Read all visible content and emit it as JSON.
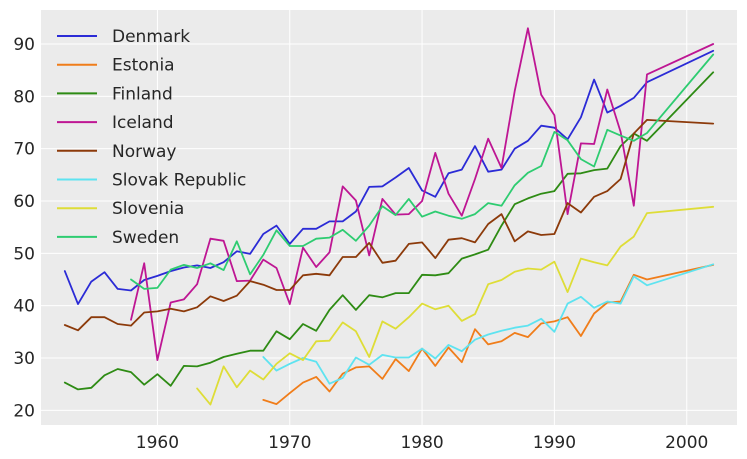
{
  "chart_data": {
    "type": "line",
    "title": "",
    "xlabel": "",
    "ylabel": "",
    "xlim": [
      1951.2,
      2003.8
    ],
    "ylim": [
      17.2,
      96.5
    ],
    "xticks": [
      1960,
      1970,
      1980,
      1990,
      2000
    ],
    "yticks": [
      20,
      30,
      40,
      50,
      60,
      70,
      80,
      90
    ],
    "grid": true,
    "legend_position": "top-left",
    "colors": {
      "background": "#ebebeb",
      "grid": "#ffffff",
      "text": "#262626"
    },
    "series": [
      {
        "name": "Denmark",
        "color": "#2b2bd6",
        "x": [
          1953,
          1954,
          1955,
          1956,
          1957,
          1958,
          1959,
          1960,
          1961,
          1962,
          1963,
          1964,
          1965,
          1966,
          1967,
          1968,
          1969,
          1970,
          1971,
          1972,
          1973,
          1974,
          1975,
          1976,
          1977,
          1978,
          1979,
          1980,
          1981,
          1982,
          1983,
          1984,
          1985,
          1986,
          1987,
          1988,
          1989,
          1990,
          1991,
          1992,
          1993,
          1994,
          1995,
          1996,
          1997,
          2002
        ],
        "y": [
          46.6,
          40.3,
          44.6,
          46.4,
          43.2,
          42.9,
          44.9,
          45.7,
          46.6,
          47.3,
          47.7,
          47.2,
          48.3,
          50.4,
          49.9,
          53.7,
          55.3,
          51.8,
          54.7,
          54.7,
          56.1,
          56.1,
          58.0,
          62.7,
          62.8,
          64.5,
          66.3,
          62.0,
          60.8,
          65.3,
          66.0,
          70.5,
          65.6,
          66.0,
          70.0,
          71.5,
          74.4,
          74.0,
          71.8,
          76.0,
          83.2,
          76.9,
          78.2,
          79.7,
          82.7,
          88.7
        ]
      },
      {
        "name": "Estonia",
        "color": "#f07d1a",
        "x": [
          1968,
          1969,
          1970,
          1971,
          1972,
          1973,
          1974,
          1975,
          1976,
          1977,
          1978,
          1979,
          1980,
          1981,
          1982,
          1983,
          1984,
          1985,
          1986,
          1987,
          1988,
          1989,
          1990,
          1991,
          1992,
          1993,
          1994,
          1995,
          1996,
          1997,
          2002
        ],
        "y": [
          22.0,
          21.2,
          23.3,
          25.3,
          26.4,
          23.6,
          27.0,
          28.2,
          28.4,
          26.0,
          29.8,
          27.5,
          31.8,
          28.5,
          32.0,
          29.2,
          35.5,
          32.6,
          33.2,
          34.8,
          34.0,
          36.6,
          37.0,
          37.8,
          34.2,
          38.5,
          40.6,
          40.8,
          45.9,
          45.0,
          47.8
        ]
      },
      {
        "name": "Finland",
        "color": "#2e8b14",
        "x": [
          1953,
          1954,
          1955,
          1956,
          1957,
          1958,
          1959,
          1960,
          1961,
          1962,
          1963,
          1964,
          1965,
          1966,
          1967,
          1968,
          1969,
          1970,
          1971,
          1972,
          1973,
          1974,
          1975,
          1976,
          1977,
          1978,
          1979,
          1980,
          1981,
          1982,
          1983,
          1984,
          1985,
          1986,
          1987,
          1988,
          1989,
          1990,
          1991,
          1992,
          1993,
          1994,
          1995,
          1996,
          1997,
          2002
        ],
        "y": [
          25.3,
          24.0,
          24.3,
          26.7,
          27.9,
          27.3,
          24.9,
          26.9,
          24.7,
          28.5,
          28.4,
          29.1,
          30.2,
          30.8,
          31.4,
          31.4,
          35.1,
          33.6,
          36.5,
          35.2,
          39.2,
          42.0,
          39.2,
          42.0,
          41.6,
          42.4,
          42.4,
          45.9,
          45.8,
          46.2,
          49.0,
          49.8,
          50.7,
          55.3,
          59.4,
          60.5,
          61.4,
          61.9,
          65.2,
          65.3,
          65.9,
          66.2,
          70.5,
          72.9,
          71.5,
          84.6
        ]
      },
      {
        "name": "Iceland",
        "color": "#be1693",
        "x": [
          1958,
          1959,
          1960,
          1961,
          1962,
          1963,
          1964,
          1965,
          1966,
          1967,
          1968,
          1969,
          1970,
          1971,
          1972,
          1973,
          1974,
          1975,
          1976,
          1977,
          1978,
          1979,
          1980,
          1981,
          1982,
          1983,
          1984,
          1985,
          1986,
          1987,
          1988,
          1989,
          1990,
          1991,
          1992,
          1993,
          1994,
          1995,
          1996,
          1997,
          2002
        ],
        "y": [
          37.3,
          48.1,
          29.6,
          40.6,
          41.2,
          44.1,
          52.8,
          52.4,
          44.7,
          44.8,
          48.8,
          47.2,
          40.3,
          51.1,
          47.4,
          50.2,
          62.8,
          60.1,
          49.6,
          60.4,
          57.4,
          57.5,
          60.0,
          69.2,
          61.4,
          57.2,
          64.2,
          71.9,
          66.3,
          81.0,
          93.0,
          80.3,
          76.4,
          57.5,
          71.0,
          70.9,
          81.3,
          73.2,
          59.1,
          84.2,
          90.0
        ]
      },
      {
        "name": "Norway",
        "color": "#8c3a0a",
        "x": [
          1953,
          1954,
          1955,
          1956,
          1957,
          1958,
          1959,
          1960,
          1961,
          1962,
          1963,
          1964,
          1965,
          1966,
          1967,
          1968,
          1969,
          1970,
          1971,
          1972,
          1973,
          1974,
          1975,
          1976,
          1977,
          1978,
          1979,
          1980,
          1981,
          1982,
          1983,
          1984,
          1985,
          1986,
          1987,
          1988,
          1989,
          1990,
          1991,
          1992,
          1993,
          1994,
          1995,
          1996,
          1997,
          2002
        ],
        "y": [
          36.3,
          35.3,
          37.8,
          37.8,
          36.5,
          36.2,
          38.7,
          38.9,
          39.4,
          38.9,
          39.7,
          41.8,
          40.9,
          41.9,
          44.7,
          44.0,
          43.0,
          43.0,
          45.8,
          46.1,
          45.8,
          49.3,
          49.3,
          52.0,
          48.2,
          48.6,
          51.8,
          52.1,
          49.1,
          52.6,
          52.9,
          52.1,
          55.6,
          57.5,
          52.3,
          54.2,
          53.5,
          53.7,
          59.6,
          57.8,
          60.8,
          61.9,
          64.2,
          72.9,
          75.5,
          74.8
        ]
      },
      {
        "name": "Slovak Republic",
        "color": "#5ee3f0",
        "x": [
          1968,
          1969,
          1970,
          1971,
          1972,
          1973,
          1974,
          1975,
          1976,
          1977,
          1978,
          1979,
          1980,
          1981,
          1982,
          1983,
          1984,
          1985,
          1986,
          1987,
          1988,
          1989,
          1990,
          1991,
          1992,
          1993,
          1994,
          1995,
          1996,
          1997,
          2002
        ],
        "y": [
          30.2,
          27.6,
          28.9,
          30.0,
          29.3,
          25.1,
          26.2,
          30.1,
          28.7,
          30.6,
          30.1,
          30.1,
          31.8,
          29.9,
          32.5,
          31.3,
          33.5,
          34.5,
          35.2,
          35.8,
          36.2,
          37.5,
          35.0,
          40.4,
          41.7,
          39.6,
          40.8,
          40.4,
          45.6,
          43.9,
          47.9
        ]
      },
      {
        "name": "Slovenia",
        "color": "#dedd37",
        "x": [
          1963,
          1964,
          1965,
          1966,
          1967,
          1968,
          1969,
          1970,
          1971,
          1972,
          1973,
          1974,
          1975,
          1976,
          1977,
          1978,
          1979,
          1980,
          1981,
          1982,
          1983,
          1984,
          1985,
          1986,
          1987,
          1988,
          1989,
          1990,
          1991,
          1992,
          1993,
          1994,
          1995,
          1996,
          1997,
          2002
        ],
        "y": [
          24.2,
          21.1,
          28.4,
          24.4,
          27.6,
          25.9,
          28.9,
          30.9,
          29.6,
          33.2,
          33.3,
          36.8,
          35.1,
          30.2,
          37.0,
          35.6,
          37.8,
          40.4,
          39.3,
          40.0,
          37.1,
          38.4,
          44.1,
          44.9,
          46.5,
          47.1,
          46.9,
          48.4,
          42.6,
          49.0,
          48.3,
          47.7,
          51.3,
          53.2,
          57.7,
          58.9
        ]
      },
      {
        "name": "Sweden",
        "color": "#2ecc71",
        "x": [
          1958,
          1959,
          1960,
          1961,
          1962,
          1963,
          1964,
          1965,
          1966,
          1967,
          1968,
          1969,
          1970,
          1971,
          1972,
          1973,
          1974,
          1975,
          1976,
          1977,
          1978,
          1979,
          1980,
          1981,
          1982,
          1983,
          1984,
          1985,
          1986,
          1987,
          1988,
          1989,
          1990,
          1991,
          1992,
          1993,
          1994,
          1995,
          1996,
          1997,
          2002
        ],
        "y": [
          45.0,
          43.2,
          43.4,
          46.9,
          47.8,
          47.2,
          48.1,
          46.8,
          52.3,
          46.0,
          49.7,
          54.4,
          51.4,
          51.4,
          52.8,
          53.0,
          54.5,
          52.4,
          55.3,
          59.0,
          57.3,
          60.4,
          57.0,
          58.0,
          57.2,
          56.6,
          57.5,
          59.6,
          59.1,
          63.0,
          65.4,
          66.7,
          73.2,
          71.6,
          68.0,
          66.6,
          73.6,
          72.5,
          71.5,
          73.0,
          88.0
        ]
      }
    ]
  }
}
